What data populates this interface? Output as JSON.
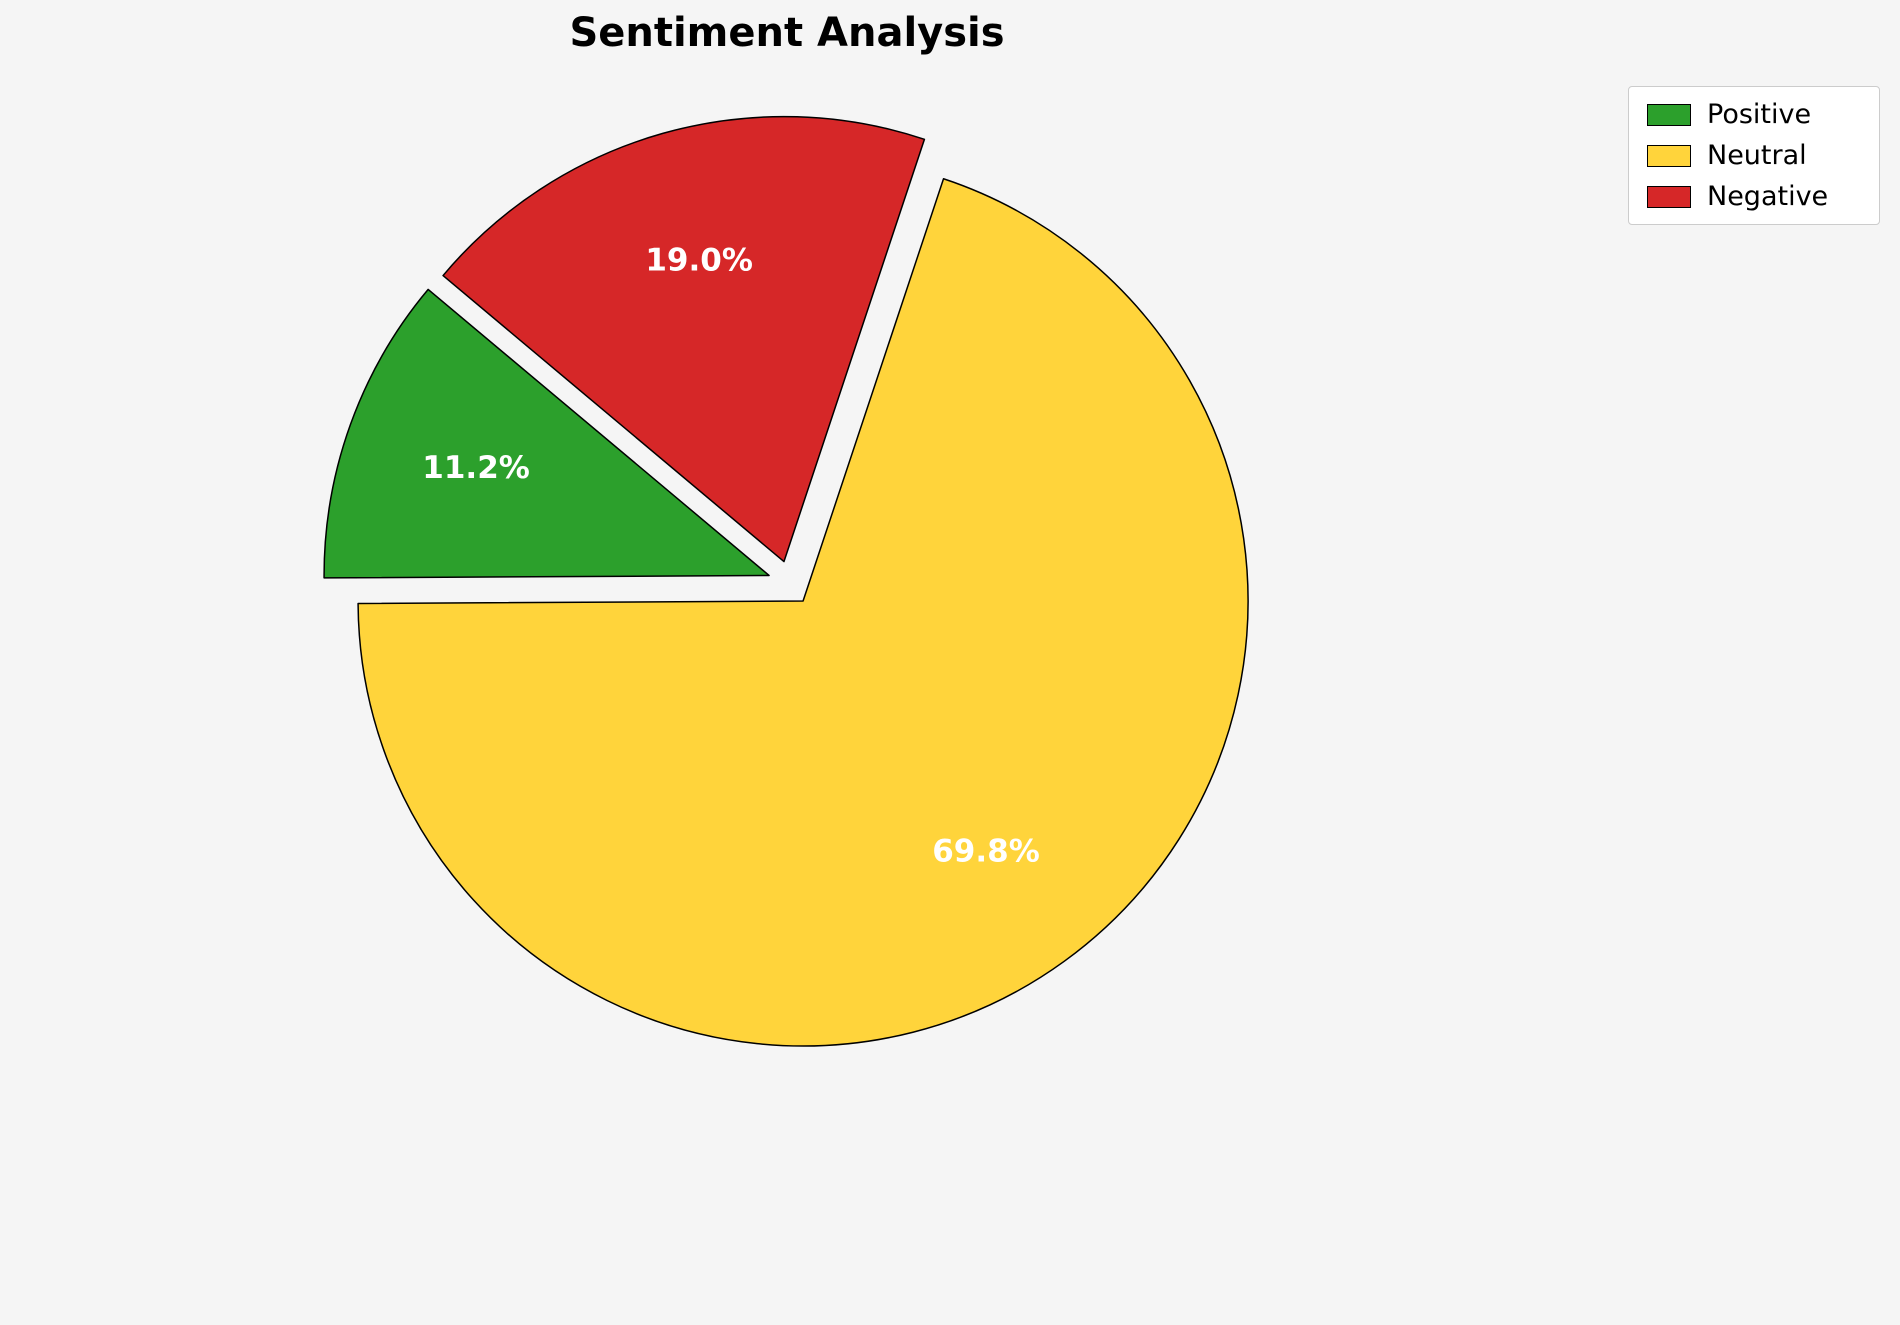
{
  "chart_data": {
    "type": "pie",
    "title": "Sentiment Analysis",
    "series": [
      {
        "name": "Positive",
        "value": 11.2,
        "label": "11.2%",
        "color": "#2ca02c"
      },
      {
        "name": "Neutral",
        "value": 69.8,
        "label": "69.8%",
        "color": "#ffd43b"
      },
      {
        "name": "Negative",
        "value": 19.0,
        "label": "19.0%",
        "color": "#d62728"
      }
    ],
    "start_angle": 140,
    "counterclockwise": true,
    "explode": 0.05,
    "pct_distance": 0.7,
    "legend_position": "upper right",
    "wedge_edge_color": "#000000",
    "label_color": "#ffffff",
    "background": "#f5f5f5"
  }
}
